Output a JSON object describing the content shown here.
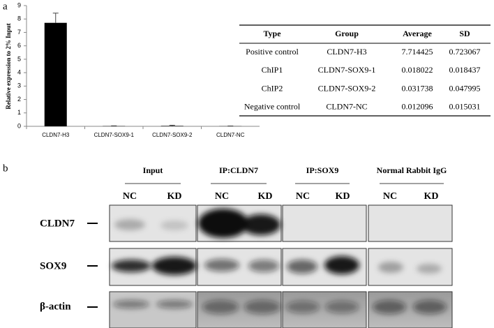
{
  "panel_labels": [
    "a",
    "b"
  ],
  "chart_data": {
    "type": "bar",
    "y_label": "Relative expression to 2% Input",
    "categories": [
      "CLDN7-H3",
      "CLDN7-SOX9-1",
      "CLDN7-SOX9-2",
      "CLDN7-NC"
    ],
    "values": [
      7.714425,
      0.018022,
      0.031738,
      0.012096
    ],
    "errors": [
      0.723067,
      0.018437,
      0.047995,
      0.015031
    ],
    "color": "#000000",
    "ylim": [
      0,
      9
    ],
    "yticks": [
      0,
      1,
      2,
      3,
      4,
      5,
      6,
      7,
      8,
      9
    ]
  },
  "table": {
    "header": [
      "Type",
      "Group",
      "Average",
      "SD"
    ],
    "rows": [
      [
        "Positive control",
        "CLDN7-H3",
        "7.714425",
        "0.723067"
      ],
      [
        "ChIP1",
        "CLDN7-SOX9-1",
        "0.018022",
        "0.018437"
      ],
      [
        "ChIP2",
        "CLDN7-SOX9-2",
        "0.031738",
        "0.047995"
      ],
      [
        "Negative control",
        "CLDN7-NC",
        "0.012096",
        "0.015031"
      ]
    ]
  },
  "blot": {
    "columns": [
      "Input",
      "IP:CLDN7",
      "IP:SOX9",
      "Normal Rabbit IgG"
    ],
    "lanes": [
      "NC",
      "KD",
      "NC",
      "KD",
      "NC",
      "KD",
      "NC",
      "KD"
    ],
    "rows": [
      "CLDN7",
      "SOX9",
      "β-actin"
    ]
  }
}
